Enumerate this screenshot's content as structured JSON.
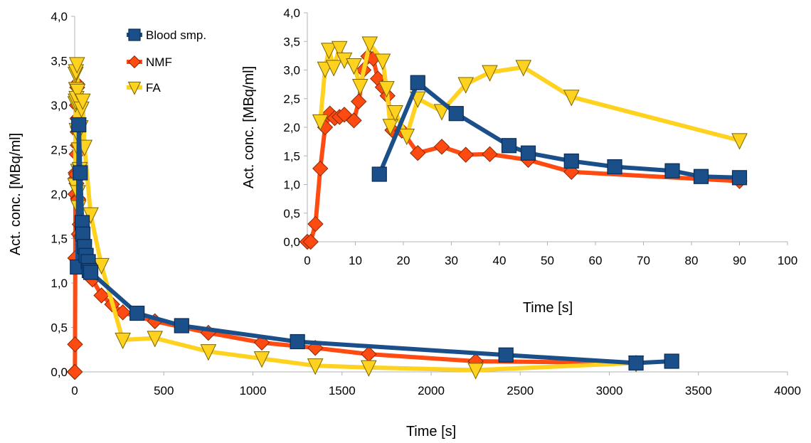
{
  "chart_data": [
    {
      "type": "line",
      "xlabel": "Time [s]",
      "ylabel": "Act. conc. [MBq/ml]",
      "xlim": [
        0,
        4000
      ],
      "ylim": [
        0,
        4
      ],
      "x_ticks": [
        "0",
        "500",
        "1000",
        "1500",
        "2000",
        "2500",
        "3000",
        "3500",
        "4000"
      ],
      "y_ticks": [
        "0,0",
        "0,5",
        "1,0",
        "1,5",
        "2,0",
        "2,5",
        "3,0",
        "3,5",
        "4,0"
      ],
      "grid": false,
      "legend_position": "top-left",
      "series": [
        {
          "name": "Blood smp.",
          "color": "#1a4f8a",
          "marker": "square",
          "points": [
            [
              15,
              1.18
            ],
            [
              23,
              2.78
            ],
            [
              31,
              2.24
            ],
            [
              42,
              1.68
            ],
            [
              46,
              1.55
            ],
            [
              55,
              1.41
            ],
            [
              64,
              1.31
            ],
            [
              76,
              1.24
            ],
            [
              82,
              1.14
            ],
            [
              90,
              1.12
            ],
            [
              350,
              0.66
            ],
            [
              600,
              0.52
            ],
            [
              1250,
              0.34
            ],
            [
              2420,
              0.19
            ],
            [
              3150,
              0.1
            ],
            [
              3350,
              0.12
            ]
          ]
        },
        {
          "name": "NMF",
          "color": "#ff4a12",
          "marker": "diamond",
          "points": [
            [
              0,
              0.0
            ],
            [
              1,
              0.0
            ],
            [
              2,
              0.31
            ],
            [
              3,
              1.28
            ],
            [
              4,
              2.0
            ],
            [
              5,
              2.24
            ],
            [
              6,
              2.16
            ],
            [
              7,
              2.18
            ],
            [
              8,
              2.22
            ],
            [
              10,
              2.12
            ],
            [
              11,
              2.45
            ],
            [
              12,
              3.0
            ],
            [
              13,
              3.24
            ],
            [
              14,
              3.2
            ],
            [
              15,
              2.85
            ],
            [
              16,
              2.7
            ],
            [
              17,
              2.55
            ],
            [
              18,
              1.95
            ],
            [
              20,
              1.94
            ],
            [
              23,
              1.55
            ],
            [
              28,
              1.66
            ],
            [
              33,
              1.52
            ],
            [
              38,
              1.53
            ],
            [
              46,
              1.43
            ],
            [
              55,
              1.22
            ],
            [
              90,
              1.06
            ],
            [
              100,
              1.04
            ],
            [
              150,
              0.86
            ],
            [
              210,
              0.76
            ],
            [
              270,
              0.67
            ],
            [
              450,
              0.57
            ],
            [
              750,
              0.44
            ],
            [
              1050,
              0.33
            ],
            [
              1350,
              0.27
            ],
            [
              1650,
              0.2
            ],
            [
              2250,
              0.12
            ],
            [
              3150,
              0.1
            ]
          ]
        },
        {
          "name": "FA",
          "color": "#ffd21f",
          "marker": "triangle-down",
          "points": [
            [
              3,
              2.1
            ],
            [
              4,
              3.02
            ],
            [
              5,
              3.35
            ],
            [
              6,
              3.05
            ],
            [
              7,
              3.38
            ],
            [
              8,
              3.18
            ],
            [
              10,
              3.08
            ],
            [
              11,
              2.72
            ],
            [
              13,
              3.46
            ],
            [
              16,
              3.16
            ],
            [
              17,
              2.68
            ],
            [
              18,
              2.02
            ],
            [
              19,
              2.26
            ],
            [
              21,
              1.85
            ],
            [
              23,
              2.5
            ],
            [
              28,
              2.28
            ],
            [
              33,
              2.75
            ],
            [
              38,
              2.96
            ],
            [
              45,
              3.05
            ],
            [
              55,
              2.53
            ],
            [
              90,
              1.77
            ],
            [
              150,
              1.2
            ],
            [
              270,
              0.36
            ],
            [
              450,
              0.38
            ],
            [
              750,
              0.23
            ],
            [
              1050,
              0.15
            ],
            [
              1350,
              0.07
            ],
            [
              1650,
              0.05
            ],
            [
              2250,
              0.02
            ],
            [
              3150,
              0.1
            ]
          ]
        }
      ]
    },
    {
      "type": "line",
      "inset": true,
      "xlabel": "Time [s]",
      "ylabel": "Act. conc. [MBq/ml]",
      "xlim": [
        0,
        100
      ],
      "ylim": [
        0,
        4
      ],
      "x_ticks": [
        "0",
        "10",
        "20",
        "30",
        "40",
        "50",
        "60",
        "70",
        "80",
        "90",
        "100"
      ],
      "y_ticks": [
        "0,0",
        "0,5",
        "1,0",
        "1,5",
        "2,0",
        "2,5",
        "3,0",
        "3,5",
        "4,0"
      ],
      "grid": false,
      "series": [
        {
          "name": "Blood smp.",
          "color": "#1a4f8a",
          "marker": "square",
          "points": [
            [
              15,
              1.18
            ],
            [
              23,
              2.78
            ],
            [
              31,
              2.24
            ],
            [
              42,
              1.68
            ],
            [
              46,
              1.55
            ],
            [
              55,
              1.41
            ],
            [
              64,
              1.31
            ],
            [
              76,
              1.24
            ],
            [
              82,
              1.14
            ],
            [
              90,
              1.12
            ]
          ]
        },
        {
          "name": "NMF",
          "color": "#ff4a12",
          "marker": "diamond",
          "points": [
            [
              0,
              0.0
            ],
            [
              0.7,
              0.0
            ],
            [
              1.7,
              0.31
            ],
            [
              2.7,
              1.28
            ],
            [
              3.7,
              2.0
            ],
            [
              4.7,
              2.24
            ],
            [
              5.7,
              2.16
            ],
            [
              6.7,
              2.18
            ],
            [
              7.7,
              2.22
            ],
            [
              9.7,
              2.12
            ],
            [
              10.7,
              2.45
            ],
            [
              11.7,
              3.0
            ],
            [
              12.7,
              3.24
            ],
            [
              13.7,
              3.2
            ],
            [
              14.7,
              2.85
            ],
            [
              15.7,
              2.7
            ],
            [
              16.7,
              2.55
            ],
            [
              17.7,
              1.95
            ],
            [
              19.7,
              1.94
            ],
            [
              23,
              1.55
            ],
            [
              28,
              1.66
            ],
            [
              33,
              1.52
            ],
            [
              38,
              1.53
            ],
            [
              46,
              1.43
            ],
            [
              55,
              1.22
            ],
            [
              90,
              1.06
            ]
          ]
        },
        {
          "name": "FA",
          "color": "#ffd21f",
          "marker": "triangle-down",
          "points": [
            [
              2.7,
              2.1
            ],
            [
              3.7,
              3.02
            ],
            [
              4.5,
              3.35
            ],
            [
              5.5,
              3.05
            ],
            [
              6.7,
              3.38
            ],
            [
              7.7,
              3.18
            ],
            [
              9.7,
              3.08
            ],
            [
              11,
              2.72
            ],
            [
              13,
              3.46
            ],
            [
              15.7,
              3.16
            ],
            [
              16.5,
              2.68
            ],
            [
              17.3,
              2.02
            ],
            [
              18.3,
              2.26
            ],
            [
              20.7,
              1.85
            ],
            [
              23,
              2.5
            ],
            [
              28,
              2.28
            ],
            [
              33,
              2.75
            ],
            [
              38,
              2.96
            ],
            [
              45,
              3.05
            ],
            [
              55,
              2.53
            ],
            [
              90,
              1.77
            ]
          ]
        }
      ]
    }
  ]
}
